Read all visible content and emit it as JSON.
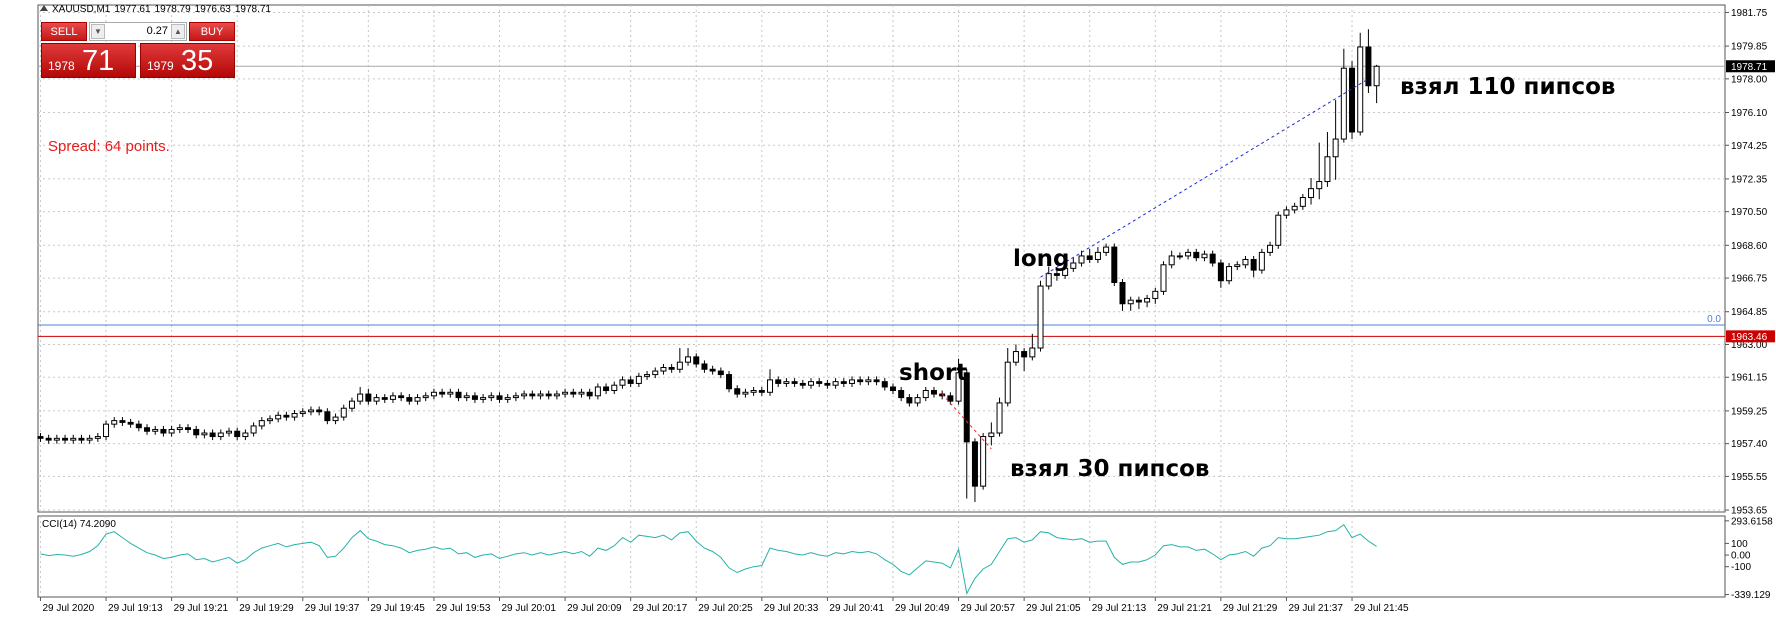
{
  "header": {
    "symbol": "XAUUSD,M1"
  },
  "trade_panel": {
    "sell": "SELL",
    "lot": "0.27",
    "buy": "BUY",
    "bid_big": "1978",
    "bid_small": "71",
    "ask_big": "1979",
    "ask_small": "35"
  },
  "spread_text": "Spread: 64 points.",
  "chart_data": [
    {
      "type": "candlestick",
      "open": [
        1957.8,
        1957.7,
        1957.6,
        1957.7,
        1957.6,
        1957.7,
        1957.6,
        1957.7,
        1957.8,
        1958.5,
        1958.7,
        1958.6,
        1958.5,
        1958.3,
        1958.1,
        1958.2,
        1958.0,
        1958.2,
        1958.3,
        1958.2,
        1957.9,
        1958.0,
        1957.8,
        1958.0,
        1958.1,
        1957.8,
        1958.0,
        1958.4,
        1958.7,
        1958.8,
        1959.0,
        1958.9,
        1959.1,
        1959.2,
        1959.3,
        1959.2,
        1958.7,
        1958.9,
        1959.4,
        1959.8,
        1960.2,
        1959.8,
        1960.0,
        1959.9,
        1960.1,
        1960.0,
        1959.8,
        1960.0,
        1960.1,
        1960.3,
        1960.2,
        1960.3,
        1960.0,
        1960.1,
        1959.9,
        1960.0,
        1960.1,
        1959.9,
        1960.0,
        1960.1,
        1960.2,
        1960.1,
        1960.2,
        1960.1,
        1960.2,
        1960.3,
        1960.2,
        1960.3,
        1960.1,
        1960.6,
        1960.4,
        1960.7,
        1961.0,
        1960.8,
        1961.2,
        1961.3,
        1961.5,
        1961.7,
        1961.6,
        1962.0,
        1962.3,
        1961.9,
        1961.6,
        1961.5,
        1961.3,
        1960.5,
        1960.2,
        1960.3,
        1960.4,
        1960.3,
        1961.0,
        1960.8,
        1960.9,
        1960.8,
        1960.7,
        1960.9,
        1960.8,
        1960.7,
        1960.9,
        1960.8,
        1961.0,
        1960.9,
        1961.0,
        1960.9,
        1960.6,
        1960.4,
        1960.0,
        1959.7,
        1960.0,
        1960.4,
        1960.2,
        1960.1,
        1959.8,
        1961.4,
        1957.5,
        1955.0,
        1957.8,
        1958.0,
        1959.7,
        1962.0,
        1962.6,
        1962.3,
        1962.8,
        1966.3,
        1967.0,
        1966.9,
        1967.3,
        1967.6,
        1968.0,
        1967.8,
        1968.2,
        1968.5,
        1966.5,
        1965.3,
        1965.5,
        1965.4,
        1965.6,
        1966.0,
        1967.5,
        1968.0,
        1968.0,
        1968.2,
        1967.9,
        1968.1,
        1967.6,
        1966.6,
        1967.4,
        1967.5,
        1967.8,
        1967.2,
        1968.2,
        1968.6,
        1970.3,
        1970.6,
        1970.8,
        1971.3,
        1971.8,
        1972.2,
        1973.6,
        1974.6,
        1978.6,
        1975.0,
        1979.8,
        1977.61
      ],
      "high": [
        1958.0,
        1957.9,
        1957.9,
        1957.9,
        1957.9,
        1957.9,
        1957.9,
        1958.0,
        1958.7,
        1958.9,
        1958.9,
        1958.8,
        1958.7,
        1958.5,
        1958.4,
        1958.4,
        1958.4,
        1958.5,
        1958.5,
        1958.4,
        1958.2,
        1958.2,
        1958.2,
        1958.3,
        1958.3,
        1958.2,
        1958.6,
        1958.9,
        1959.0,
        1959.2,
        1959.2,
        1959.3,
        1959.4,
        1959.5,
        1959.5,
        1959.4,
        1959.1,
        1959.6,
        1960.0,
        1960.6,
        1960.5,
        1960.2,
        1960.2,
        1960.3,
        1960.3,
        1960.2,
        1960.2,
        1960.3,
        1960.5,
        1960.5,
        1960.5,
        1960.5,
        1960.3,
        1960.3,
        1960.2,
        1960.3,
        1960.3,
        1960.2,
        1960.3,
        1960.4,
        1960.4,
        1960.4,
        1960.4,
        1960.4,
        1960.5,
        1960.5,
        1960.5,
        1960.5,
        1960.8,
        1960.8,
        1960.9,
        1961.2,
        1961.2,
        1961.4,
        1961.5,
        1961.7,
        1961.9,
        1961.9,
        1962.8,
        1962.8,
        1962.5,
        1962.1,
        1961.8,
        1961.7,
        1961.5,
        1960.7,
        1960.5,
        1960.6,
        1960.6,
        1961.6,
        1961.2,
        1961.1,
        1961.1,
        1961.0,
        1961.1,
        1961.1,
        1961.0,
        1961.1,
        1961.1,
        1961.2,
        1961.2,
        1961.2,
        1961.2,
        1961.1,
        1960.8,
        1960.6,
        1960.2,
        1960.2,
        1960.6,
        1960.6,
        1960.4,
        1960.3,
        1962.2,
        1961.6,
        1957.7,
        1958.0,
        1958.6,
        1960.0,
        1962.8,
        1963.0,
        1962.8,
        1963.6,
        1966.6,
        1967.4,
        1967.2,
        1967.6,
        1967.9,
        1968.3,
        1968.4,
        1968.5,
        1968.7,
        1968.7,
        1966.7,
        1965.7,
        1965.7,
        1965.8,
        1966.2,
        1967.7,
        1968.3,
        1968.2,
        1968.4,
        1968.4,
        1968.3,
        1968.3,
        1967.8,
        1967.6,
        1967.7,
        1968.0,
        1968.0,
        1968.4,
        1968.8,
        1970.5,
        1970.8,
        1971.0,
        1971.5,
        1972.4,
        1974.4,
        1975.0,
        1976.8,
        1979.7,
        1979.0,
        1980.6,
        1980.8,
        1978.79
      ],
      "low": [
        1957.5,
        1957.4,
        1957.4,
        1957.4,
        1957.4,
        1957.4,
        1957.4,
        1957.5,
        1957.6,
        1958.3,
        1958.4,
        1958.3,
        1958.1,
        1957.9,
        1957.9,
        1957.8,
        1957.8,
        1958.0,
        1958.0,
        1957.7,
        1957.7,
        1957.6,
        1957.6,
        1957.8,
        1957.6,
        1957.6,
        1957.8,
        1958.2,
        1958.5,
        1958.6,
        1958.7,
        1958.7,
        1958.9,
        1959.0,
        1959.0,
        1958.5,
        1958.5,
        1958.7,
        1959.2,
        1959.6,
        1959.6,
        1959.6,
        1959.7,
        1959.7,
        1959.8,
        1959.6,
        1959.6,
        1959.8,
        1959.9,
        1960.0,
        1960.0,
        1959.8,
        1959.8,
        1959.7,
        1959.7,
        1959.8,
        1959.7,
        1959.7,
        1959.8,
        1959.9,
        1959.9,
        1959.9,
        1959.9,
        1959.9,
        1960.0,
        1960.0,
        1960.0,
        1959.9,
        1959.9,
        1960.2,
        1960.2,
        1960.5,
        1960.6,
        1960.6,
        1961.0,
        1961.1,
        1961.3,
        1961.4,
        1961.4,
        1961.8,
        1961.7,
        1961.4,
        1961.3,
        1961.1,
        1960.3,
        1960.0,
        1960.0,
        1960.1,
        1960.1,
        1960.1,
        1960.6,
        1960.6,
        1960.6,
        1960.5,
        1960.5,
        1960.6,
        1960.5,
        1960.5,
        1960.6,
        1960.6,
        1960.7,
        1960.7,
        1960.7,
        1960.4,
        1960.2,
        1959.8,
        1959.5,
        1959.5,
        1959.8,
        1960.0,
        1959.9,
        1959.6,
        1959.6,
        1954.3,
        1954.1,
        1954.8,
        1957.3,
        1957.8,
        1959.5,
        1961.8,
        1961.5,
        1962.1,
        1962.6,
        1966.1,
        1966.6,
        1966.7,
        1967.1,
        1967.4,
        1967.6,
        1967.6,
        1968.0,
        1966.3,
        1964.9,
        1964.9,
        1965.0,
        1965.1,
        1965.3,
        1965.8,
        1967.3,
        1967.8,
        1967.8,
        1967.7,
        1967.7,
        1967.4,
        1966.2,
        1966.4,
        1967.2,
        1967.3,
        1966.8,
        1967.0,
        1968.0,
        1968.4,
        1970.1,
        1970.4,
        1970.6,
        1970.9,
        1971.2,
        1971.9,
        1972.3,
        1974.4,
        1974.6,
        1974.8,
        1977.2,
        1976.63
      ],
      "close": [
        1957.7,
        1957.6,
        1957.7,
        1957.6,
        1957.7,
        1957.6,
        1957.7,
        1957.8,
        1958.5,
        1958.7,
        1958.6,
        1958.5,
        1958.3,
        1958.1,
        1958.2,
        1958.0,
        1958.2,
        1958.3,
        1958.2,
        1957.9,
        1958.0,
        1957.8,
        1958.0,
        1958.1,
        1957.8,
        1958.0,
        1958.4,
        1958.7,
        1958.8,
        1959.0,
        1958.9,
        1959.1,
        1959.2,
        1959.3,
        1959.2,
        1958.7,
        1958.9,
        1959.4,
        1959.8,
        1960.2,
        1959.8,
        1960.0,
        1959.9,
        1960.1,
        1960.0,
        1959.8,
        1960.0,
        1960.1,
        1960.3,
        1960.2,
        1960.3,
        1960.0,
        1960.1,
        1959.9,
        1960.0,
        1960.1,
        1959.9,
        1960.0,
        1960.1,
        1960.2,
        1960.1,
        1960.2,
        1960.1,
        1960.2,
        1960.3,
        1960.2,
        1960.3,
        1960.1,
        1960.6,
        1960.4,
        1960.7,
        1961.0,
        1960.8,
        1961.2,
        1961.3,
        1961.5,
        1961.7,
        1961.6,
        1962.0,
        1962.3,
        1961.9,
        1961.6,
        1961.5,
        1961.3,
        1960.5,
        1960.2,
        1960.3,
        1960.4,
        1960.3,
        1961.0,
        1960.8,
        1960.9,
        1960.8,
        1960.7,
        1960.9,
        1960.8,
        1960.7,
        1960.9,
        1960.8,
        1961.0,
        1960.9,
        1961.0,
        1960.9,
        1960.6,
        1960.4,
        1960.0,
        1959.7,
        1960.0,
        1960.4,
        1960.2,
        1960.1,
        1959.8,
        1961.4,
        1957.5,
        1955.0,
        1957.8,
        1958.0,
        1959.7,
        1962.0,
        1962.6,
        1962.3,
        1962.8,
        1966.3,
        1967.0,
        1966.9,
        1967.3,
        1967.6,
        1968.0,
        1967.8,
        1968.2,
        1968.5,
        1966.5,
        1965.3,
        1965.5,
        1965.4,
        1965.6,
        1966.0,
        1967.5,
        1968.0,
        1968.0,
        1968.2,
        1967.9,
        1968.1,
        1967.6,
        1966.6,
        1967.4,
        1967.5,
        1967.8,
        1967.2,
        1968.2,
        1968.6,
        1970.3,
        1970.6,
        1970.8,
        1971.3,
        1971.8,
        1972.2,
        1973.6,
        1974.6,
        1978.6,
        1975.0,
        1979.8,
        1977.61,
        1978.71
      ],
      "up_color": "#ffffff",
      "down_color": "#000000",
      "xlim": [
        -0.3,
        205.5
      ],
      "xticks": [
        {
          "value": 0,
          "label": "29 Jul 2020"
        },
        {
          "value": 8,
          "label": "29 Jul 19:13"
        },
        {
          "value": 16,
          "label": "29 Jul 19:21"
        },
        {
          "value": 24,
          "label": "29 Jul 19:29"
        },
        {
          "value": 32,
          "label": "29 Jul 19:37"
        },
        {
          "value": 40,
          "label": "29 Jul 19:45"
        },
        {
          "value": 48,
          "label": "29 Jul 19:53"
        },
        {
          "value": 56,
          "label": "29 Jul 20:01"
        },
        {
          "value": 64,
          "label": "29 Jul 20:09"
        },
        {
          "value": 72,
          "label": "29 Jul 20:17"
        },
        {
          "value": 80,
          "label": "29 Jul 20:25"
        },
        {
          "value": 88,
          "label": "29 Jul 20:33"
        },
        {
          "value": 96,
          "label": "29 Jul 20:41"
        },
        {
          "value": 104,
          "label": "29 Jul 20:49"
        },
        {
          "value": 112,
          "label": "29 Jul 20:57"
        },
        {
          "value": 120,
          "label": "29 Jul 21:05"
        },
        {
          "value": 128,
          "label": "29 Jul 21:13"
        },
        {
          "value": 136,
          "label": "29 Jul 21:21"
        },
        {
          "value": 144,
          "label": "29 Jul 21:29"
        },
        {
          "value": 152,
          "label": "29 Jul 21:37"
        },
        {
          "value": 160,
          "label": "29 Jul 21:45"
        }
      ],
      "ylim": [
        1953.54,
        1982.17
      ],
      "yticks": [
        1981.75,
        1979.85,
        {
          "value": 1978.0,
          "label": "1978.00"
        },
        {
          "value": 1976.1,
          "label": "1976.10"
        },
        1974.25,
        1972.35,
        {
          "value": 1970.5,
          "label": "1970.50"
        },
        {
          "value": 1968.6,
          "label": "1968.60"
        },
        1966.75,
        1964.85,
        {
          "value": 1963.0,
          "label": "1963.00"
        },
        1961.15,
        1959.25,
        {
          "value": 1957.4,
          "label": "1957.40"
        },
        1955.55,
        1953.65
      ],
      "grid": true,
      "bid_line_color": "#a8a8a8",
      "level": {
        "value": 1963.46,
        "color": "#cc0000"
      },
      "fib_level": {
        "value": 1964.1,
        "label": "0.0",
        "color": "#4f7fd8"
      },
      "trades": [
        {
          "x": [
            110,
            116
          ],
          "y": [
            1960.2,
            1957.1
          ],
          "color": "#ff2020"
        },
        {
          "x": [
            122,
            162
          ],
          "y": [
            1966.8,
            1978.0
          ],
          "color": "#1c2cd8"
        }
      ],
      "annotations": [
        "взял 110 пипсов",
        "long",
        "short",
        "взял 30 пипсов"
      ]
    },
    {
      "type": "line",
      "title": "CCI(14) 74.2090",
      "color": "#25b3aa",
      "values": [
        10,
        -5,
        5,
        0,
        -10,
        5,
        30,
        80,
        180,
        200,
        150,
        100,
        60,
        20,
        0,
        -30,
        -20,
        0,
        10,
        -40,
        -30,
        -60,
        -40,
        -20,
        -70,
        -40,
        20,
        60,
        80,
        100,
        70,
        90,
        100,
        110,
        80,
        -20,
        -10,
        60,
        150,
        210,
        140,
        120,
        90,
        80,
        60,
        20,
        40,
        50,
        70,
        50,
        60,
        10,
        20,
        -20,
        0,
        10,
        -30,
        -10,
        10,
        20,
        0,
        20,
        0,
        15,
        30,
        10,
        30,
        -10,
        60,
        40,
        80,
        150,
        110,
        170,
        160,
        150,
        170,
        130,
        190,
        200,
        120,
        60,
        30,
        -20,
        -110,
        -150,
        -120,
        -100,
        -90,
        60,
        40,
        30,
        10,
        0,
        20,
        0,
        -10,
        20,
        10,
        30,
        20,
        30,
        10,
        -40,
        -80,
        -140,
        -170,
        -110,
        -50,
        -60,
        -70,
        -110,
        50,
        -330,
        -200,
        -120,
        -80,
        30,
        140,
        150,
        110,
        130,
        200,
        190,
        150,
        140,
        130,
        140,
        110,
        120,
        120,
        -20,
        -80,
        -60,
        -60,
        -40,
        0,
        80,
        90,
        70,
        70,
        40,
        50,
        10,
        -40,
        0,
        10,
        30,
        -10,
        60,
        80,
        150,
        140,
        140,
        150,
        160,
        170,
        200,
        210,
        260,
        150,
        180,
        120,
        74.209
      ],
      "ylim": [
        -360,
        335
      ],
      "yticks": [
        293.6158,
        100,
        {
          "value": 0,
          "label": "0.00"
        },
        -100,
        -339.129
      ]
    }
  ]
}
